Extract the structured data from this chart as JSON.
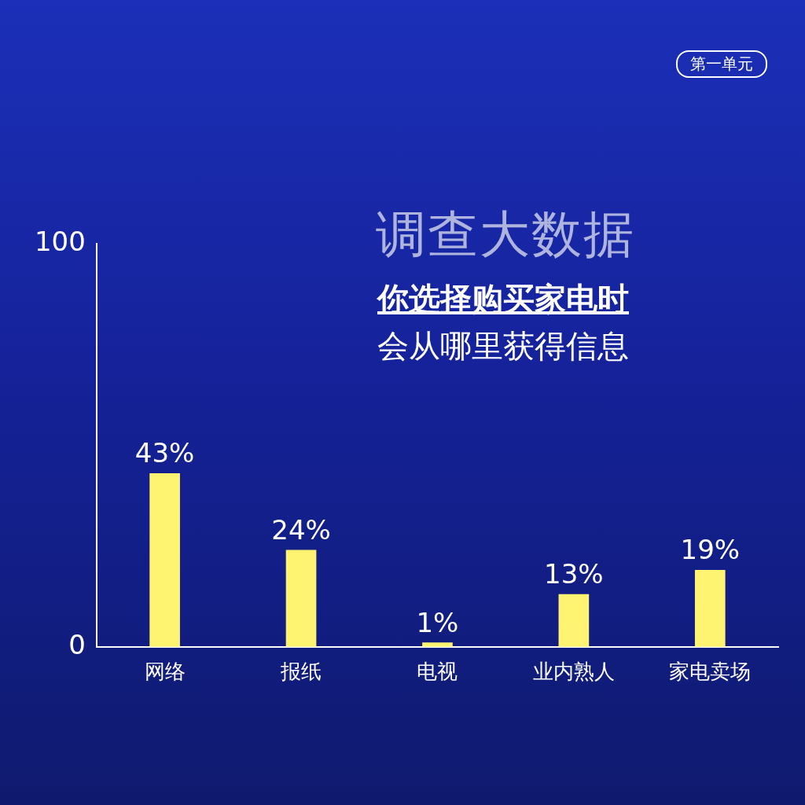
{
  "chart_data": {
    "type": "bar",
    "title": "调查大数据",
    "subtitle": "你选择购买家电时会从哪里获得信息",
    "categories": [
      "网络",
      "报纸",
      "电视",
      "业内熟人",
      "家电卖场"
    ],
    "values": [
      43,
      24,
      1,
      13,
      19
    ],
    "value_labels": [
      "43%",
      "24%",
      "1%",
      "13%",
      "19%"
    ],
    "color": "#fff372",
    "ylim": [
      0,
      100
    ],
    "yticks": [
      0,
      100
    ],
    "grid": false,
    "legend": false,
    "annotations": [
      "第一单元"
    ]
  }
}
